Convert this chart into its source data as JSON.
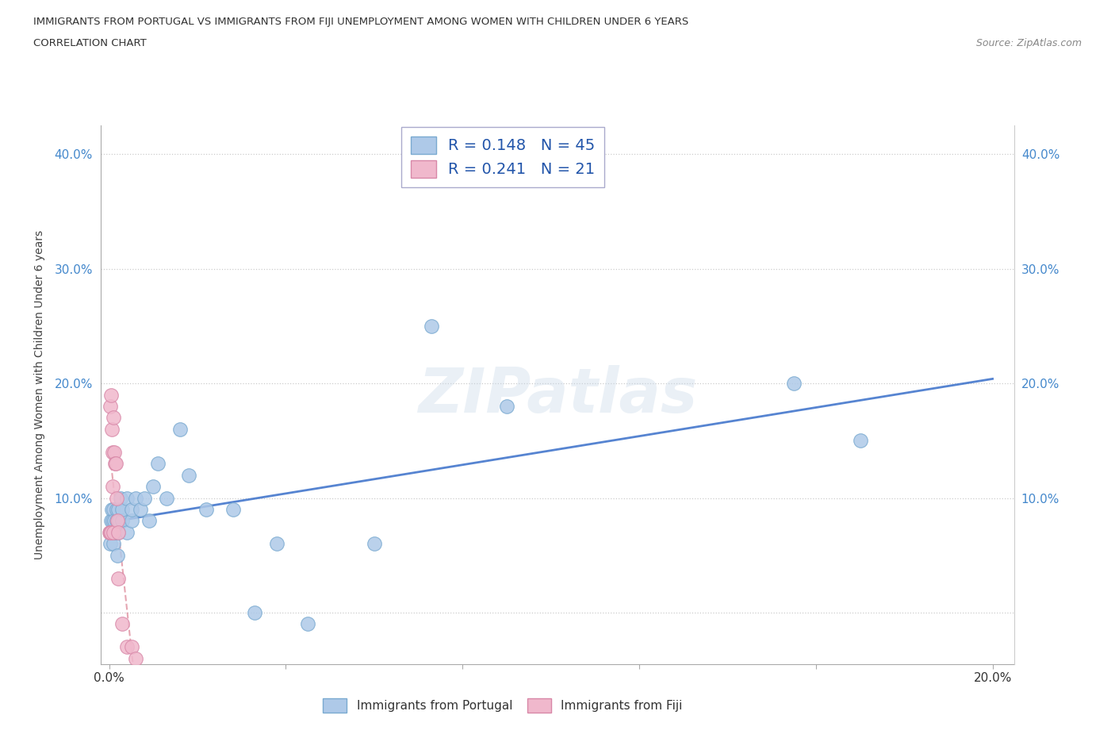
{
  "title_line1": "IMMIGRANTS FROM PORTUGAL VS IMMIGRANTS FROM FIJI UNEMPLOYMENT AMONG WOMEN WITH CHILDREN UNDER 6 YEARS",
  "title_line2": "CORRELATION CHART",
  "source": "Source: ZipAtlas.com",
  "ylabel": "Unemployment Among Women with Children Under 6 years",
  "xlim": [
    -0.002,
    0.205
  ],
  "ylim": [
    -0.045,
    0.425
  ],
  "watermark": "ZIPatlas",
  "portugal_color": "#aec9e8",
  "fiji_color": "#f0b8cc",
  "portugal_edge": "#7aaad0",
  "fiji_edge": "#d888a8",
  "trend_portugal_color": "#4477cc",
  "trend_fiji_color": "#dd8899",
  "background_color": "#ffffff",
  "portugal_x": [
    0.0002,
    0.0003,
    0.0004,
    0.0005,
    0.0006,
    0.0007,
    0.0008,
    0.0009,
    0.001,
    0.001,
    0.0012,
    0.0013,
    0.0015,
    0.0016,
    0.0017,
    0.0018,
    0.002,
    0.002,
    0.0022,
    0.0025,
    0.003,
    0.003,
    0.004,
    0.004,
    0.005,
    0.005,
    0.006,
    0.007,
    0.008,
    0.009,
    0.01,
    0.011,
    0.013,
    0.016,
    0.018,
    0.022,
    0.028,
    0.033,
    0.038,
    0.045,
    0.06,
    0.073,
    0.09,
    0.155,
    0.17
  ],
  "portugal_y": [
    0.07,
    0.06,
    0.08,
    0.07,
    0.09,
    0.07,
    0.08,
    0.07,
    0.09,
    0.06,
    0.08,
    0.07,
    0.07,
    0.09,
    0.08,
    0.05,
    0.09,
    0.07,
    0.08,
    0.1,
    0.08,
    0.09,
    0.07,
    0.1,
    0.08,
    0.09,
    0.1,
    0.09,
    0.1,
    0.08,
    0.11,
    0.13,
    0.1,
    0.16,
    0.12,
    0.09,
    0.09,
    0.0,
    0.06,
    -0.01,
    0.06,
    0.25,
    0.18,
    0.2,
    0.15
  ],
  "fiji_x": [
    0.0001,
    0.0002,
    0.0003,
    0.0004,
    0.0005,
    0.0006,
    0.0007,
    0.0008,
    0.001,
    0.001,
    0.0012,
    0.0014,
    0.0015,
    0.0016,
    0.0018,
    0.002,
    0.002,
    0.003,
    0.004,
    0.005,
    0.006
  ],
  "fiji_y": [
    0.07,
    0.07,
    0.18,
    0.19,
    0.07,
    0.16,
    0.11,
    0.14,
    0.07,
    0.17,
    0.14,
    0.13,
    0.13,
    0.1,
    0.08,
    0.07,
    0.03,
    -0.01,
    -0.03,
    -0.03,
    -0.04
  ]
}
